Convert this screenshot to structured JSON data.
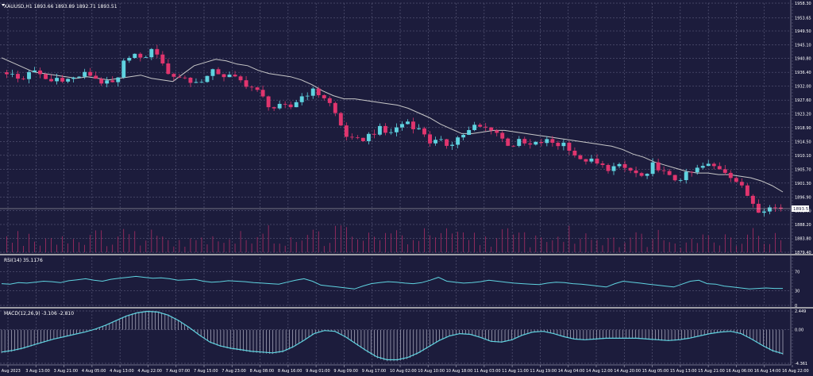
{
  "window": {
    "symbol_line": "XAUUSD,H1  1893.66 1893.89 1892.71 1893.51",
    "price_tag": "1893.51"
  },
  "colors": {
    "background": "#1c1c3c",
    "grid": "#6a6a8a",
    "bull": "#5fd3e0",
    "bear": "#e0356e",
    "ma": "#c8c8c8",
    "volume": "#c0306a",
    "oscillator": "#5fd3e0",
    "separator": "#c8c8c8"
  },
  "chart_data": [
    {
      "type": "candlestick",
      "title": "XAUUSD,H1  1893.66 1893.89 1892.71 1893.51",
      "price_axis": [
        "1958.30",
        "1953.65",
        "1949.50",
        "1945.10",
        "1940.80",
        "1936.40",
        "1932.00",
        "1927.60",
        "1923.20",
        "1918.90",
        "1914.50",
        "1910.10",
        "1905.70",
        "1901.30",
        "1896.90",
        "1892.60",
        "1888.20",
        "1883.80",
        "1879.40"
      ],
      "ylim": [
        1879.4,
        1958.3
      ],
      "time_axis": [
        "3 Aug 2023",
        "3 Aug 13:00",
        "3 Aug 21:00",
        "4 Aug 05:00",
        "4 Aug 13:00",
        "4 Aug 22:00",
        "7 Aug 07:00",
        "7 Aug 15:00",
        "7 Aug 23:00",
        "8 Aug 08:00",
        "8 Aug 16:00",
        "9 Aug 01:00",
        "9 Aug 09:00",
        "9 Aug 17:00",
        "10 Aug 02:00",
        "10 Aug 10:00",
        "10 Aug 18:00",
        "11 Aug 03:00",
        "11 Aug 11:00",
        "11 Aug 19:00",
        "14 Aug 04:00",
        "14 Aug 12:00",
        "14 Aug 20:00",
        "15 Aug 05:00",
        "15 Aug 13:00",
        "15 Aug 21:00",
        "16 Aug 06:00",
        "16 Aug 14:00",
        "16 Aug 22:00"
      ],
      "close_path": [
        1936.5,
        1935.0,
        1933.5,
        1937.0,
        1936.0,
        1934.5,
        1933.5,
        1935.0,
        1934.0,
        1934.5,
        1935.5,
        1936.0,
        1934.5,
        1933.0,
        1932.5,
        1934.0,
        1941.5,
        1942.5,
        1940.0,
        1942.5,
        1944.0,
        1938.0,
        1936.0,
        1934.5,
        1935.0,
        1932.5,
        1934.0,
        1935.0,
        1937.0,
        1935.5,
        1935.0,
        1934.0,
        1933.0,
        1931.5,
        1929.5,
        1926.5,
        1925.0,
        1925.5,
        1925.0,
        1927.5,
        1929.5,
        1930.5,
        1929.5,
        1928.0,
        1924.0,
        1919.0,
        1915.0,
        1914.5,
        1915.5,
        1917.0,
        1918.5,
        1917.0,
        1918.0,
        1920.0,
        1921.0,
        1918.5,
        1917.5,
        1914.0,
        1914.5,
        1913.5,
        1914.5,
        1916.5,
        1917.5,
        1919.5,
        1918.5,
        1919.0,
        1917.0,
        1914.0,
        1913.5,
        1914.5,
        1913.0,
        1913.5,
        1914.5,
        1914.5,
        1913.5,
        1914.0,
        1911.5,
        1908.0,
        1909.0,
        1907.5,
        1906.5,
        1906.0,
        1906.5,
        1906.0,
        1905.0,
        1903.5,
        1903.0,
        1908.0,
        1905.0,
        1903.0,
        1902.5,
        1903.5,
        1904.5,
        1906.0,
        1907.0,
        1906.5,
        1906.0,
        1904.5,
        1902.0,
        1899.0,
        1896.0,
        1893.0,
        1893.5,
        1893.5,
        1893.5
      ],
      "moving_average": [
        1941.0,
        1939.5,
        1938.0,
        1936.5,
        1936.0,
        1935.5,
        1935.0,
        1934.5,
        1935.0,
        1934.5,
        1934.0,
        1934.5,
        1935.0,
        1935.5,
        1934.5,
        1934.0,
        1933.5,
        1936.0,
        1938.5,
        1939.5,
        1940.5,
        1940.0,
        1939.0,
        1938.5,
        1937.0,
        1936.0,
        1935.5,
        1935.0,
        1934.0,
        1932.5,
        1930.5,
        1929.0,
        1928.0,
        1928.0,
        1927.5,
        1927.0,
        1926.5,
        1926.0,
        1925.0,
        1923.5,
        1922.0,
        1920.0,
        1918.5,
        1917.0,
        1917.0,
        1917.5,
        1918.0,
        1918.0,
        1917.5,
        1917.0,
        1916.5,
        1916.0,
        1915.5,
        1915.0,
        1914.5,
        1914.0,
        1913.5,
        1913.0,
        1912.0,
        1910.5,
        1909.5,
        1908.0,
        1907.0,
        1906.0,
        1905.0,
        1904.5,
        1904.5,
        1904.0,
        1904.0,
        1903.5,
        1903.0,
        1902.0,
        1900.5,
        1898.5
      ],
      "volume_axis": "1000",
      "rsi": {
        "label": "RSI(14) 35.1176",
        "levels": [
          "70",
          "30",
          "0"
        ],
        "values": [
          45,
          44,
          47,
          46,
          48,
          50,
          49,
          47,
          51,
          53,
          55,
          52,
          50,
          54,
          56,
          58,
          60,
          58,
          56,
          57,
          55,
          52,
          53,
          54,
          50,
          48,
          49,
          51,
          50,
          49,
          47,
          46,
          45,
          44,
          48,
          52,
          55,
          50,
          42,
          40,
          38,
          36,
          34,
          40,
          45,
          47,
          49,
          48,
          46,
          45,
          47,
          52,
          58,
          50,
          48,
          46,
          47,
          49,
          52,
          50,
          48,
          46,
          45,
          44,
          43,
          46,
          48,
          47,
          45,
          44,
          42,
          40,
          38,
          45,
          50,
          48,
          46,
          44,
          42,
          40,
          38,
          44,
          50,
          52,
          45,
          44,
          40,
          38,
          36,
          34,
          35,
          36,
          35,
          35
        ]
      },
      "macd": {
        "label": "MACD(12,26,9) -3.106 -2.810",
        "axis": [
          "2.449",
          "0.00",
          "-4.361"
        ],
        "values": [
          -2.9,
          -2.7,
          -2.4,
          -2.0,
          -1.6,
          -1.2,
          -0.9,
          -0.6,
          -0.3,
          0.1,
          0.6,
          1.2,
          1.8,
          2.2,
          2.4,
          2.3,
          1.9,
          1.2,
          0.3,
          -0.7,
          -1.6,
          -2.1,
          -2.4,
          -2.6,
          -2.8,
          -2.9,
          -3.0,
          -2.8,
          -2.2,
          -1.4,
          -0.5,
          -0.1,
          -0.2,
          -0.9,
          -1.8,
          -2.7,
          -3.5,
          -3.9,
          -3.9,
          -3.6,
          -3.0,
          -2.2,
          -1.4,
          -0.8,
          -0.5,
          -0.6,
          -1.0,
          -1.5,
          -1.6,
          -1.3,
          -0.7,
          -0.3,
          -0.2,
          -0.5,
          -0.9,
          -1.2,
          -1.3,
          -1.2,
          -1.1,
          -1.1,
          -1.1,
          -1.1,
          -1.2,
          -1.3,
          -1.4,
          -1.3,
          -1.1,
          -0.8,
          -0.5,
          -0.3,
          -0.2,
          -0.5,
          -1.2,
          -2.0,
          -2.7,
          -3.1
        ]
      }
    }
  ]
}
